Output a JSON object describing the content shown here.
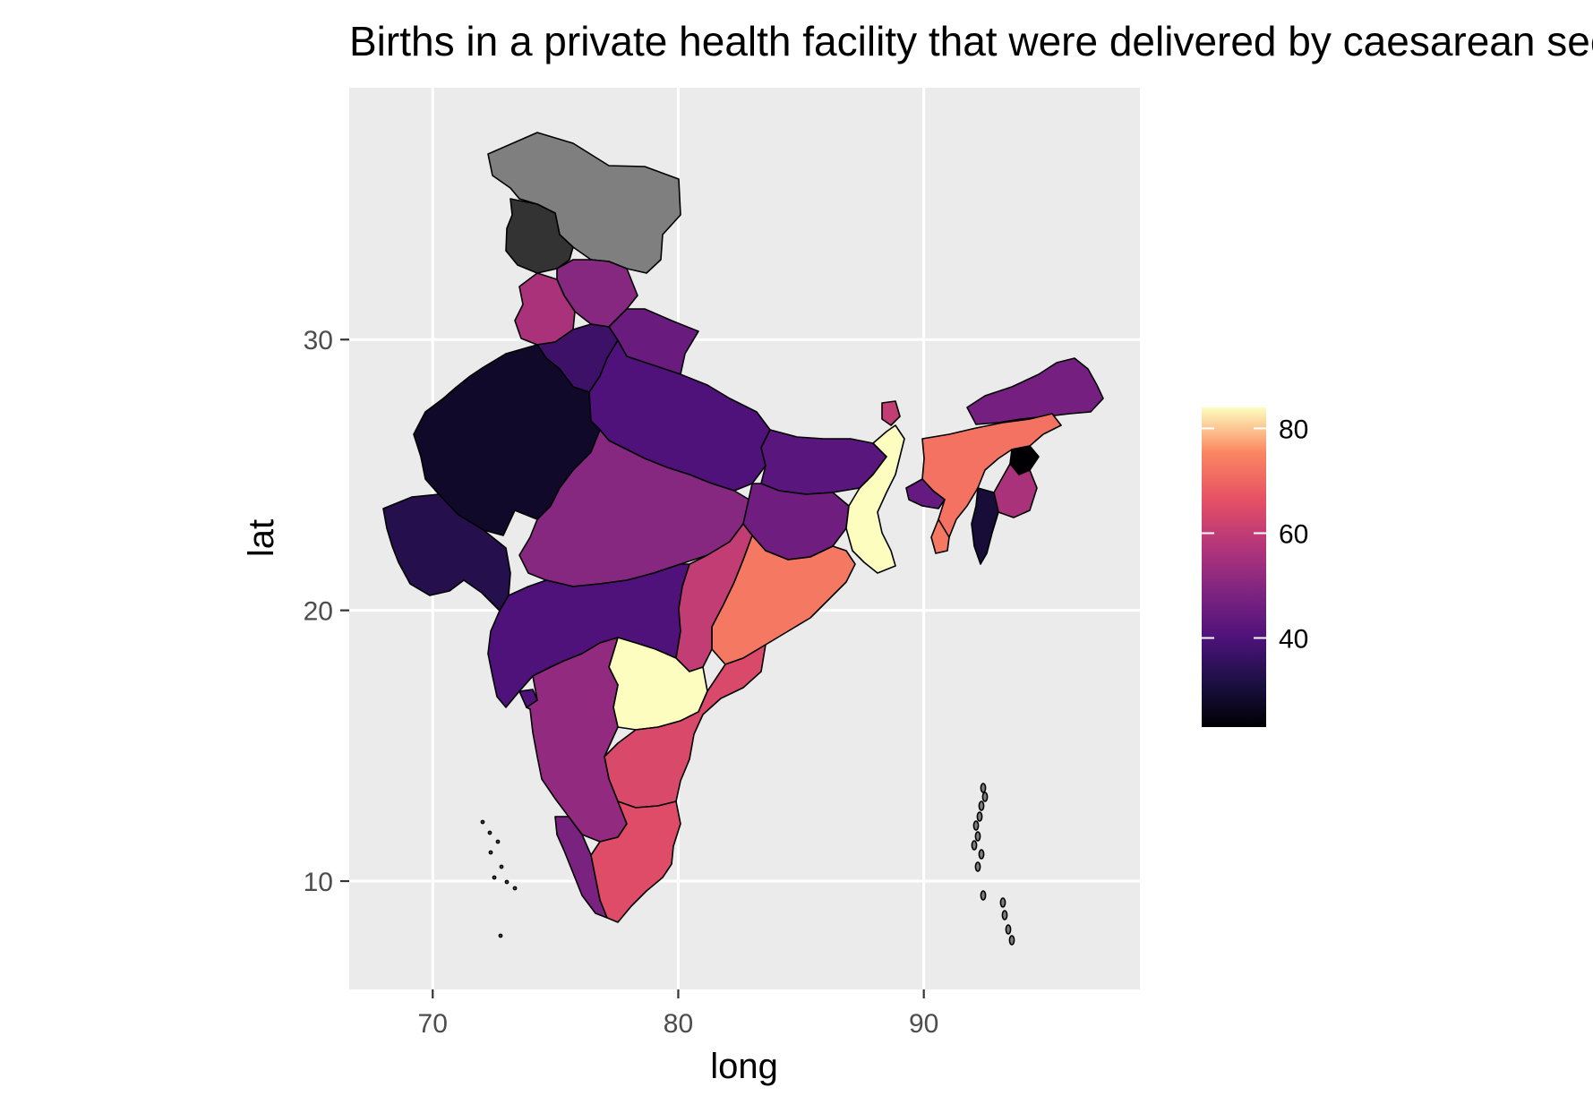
{
  "title": "Births in a private health facility that were delivered by caesarean section (%)",
  "chart_data": {
    "type": "choropleth map",
    "xlabel": "long",
    "ylabel": "lat",
    "xlim": [
      66.6,
      98.8
    ],
    "ylim": [
      6.0,
      39.3
    ],
    "x_ticks": [
      70,
      80,
      90
    ],
    "y_ticks": [
      10,
      20,
      30
    ],
    "colorscale": "magma",
    "legend": {
      "position": "right",
      "min": 23,
      "max": 84,
      "ticks": [
        40,
        60,
        80
      ]
    },
    "missing_color": "#7f7f7f",
    "regions": [
      {
        "name": "Jammu & Kashmir",
        "value": null
      },
      {
        "name": "Ladakh",
        "value": null,
        "color_override": "#333333"
      },
      {
        "name": "Himachal Pradesh",
        "value": 50
      },
      {
        "name": "Punjab",
        "value": 56
      },
      {
        "name": "Uttarakhand",
        "value": 45
      },
      {
        "name": "Haryana",
        "value": 37
      },
      {
        "name": "Rajasthan",
        "value": 28
      },
      {
        "name": "Gujarat",
        "value": 33
      },
      {
        "name": "Uttar Pradesh",
        "value": 40
      },
      {
        "name": "Madhya Pradesh",
        "value": 50
      },
      {
        "name": "Maharashtra",
        "value": 40
      },
      {
        "name": "Bihar",
        "value": 42
      },
      {
        "name": "Jharkhand",
        "value": 46
      },
      {
        "name": "West Bengal",
        "value": 84
      },
      {
        "name": "Odisha",
        "value": 73
      },
      {
        "name": "Chhattisgarh",
        "value": 60
      },
      {
        "name": "Telangana",
        "value": 84
      },
      {
        "name": "Andhra Pradesh",
        "value": 64
      },
      {
        "name": "Karnataka",
        "value": 52
      },
      {
        "name": "Goa",
        "value": 40
      },
      {
        "name": "Kerala",
        "value": 48
      },
      {
        "name": "Tamil Nadu",
        "value": 65
      },
      {
        "name": "Sikkim",
        "value": 60
      },
      {
        "name": "Arunachal Pradesh",
        "value": 47
      },
      {
        "name": "Assam",
        "value": 72
      },
      {
        "name": "Meghalaya",
        "value": 44
      },
      {
        "name": "Nagaland",
        "value": 23
      },
      {
        "name": "Manipur",
        "value": 56
      },
      {
        "name": "Mizoram",
        "value": 30
      },
      {
        "name": "Tripura",
        "value": 73
      },
      {
        "name": "Andaman & Nicobar Islands",
        "value": null
      },
      {
        "name": "Lakshadweep",
        "value": null
      }
    ]
  }
}
